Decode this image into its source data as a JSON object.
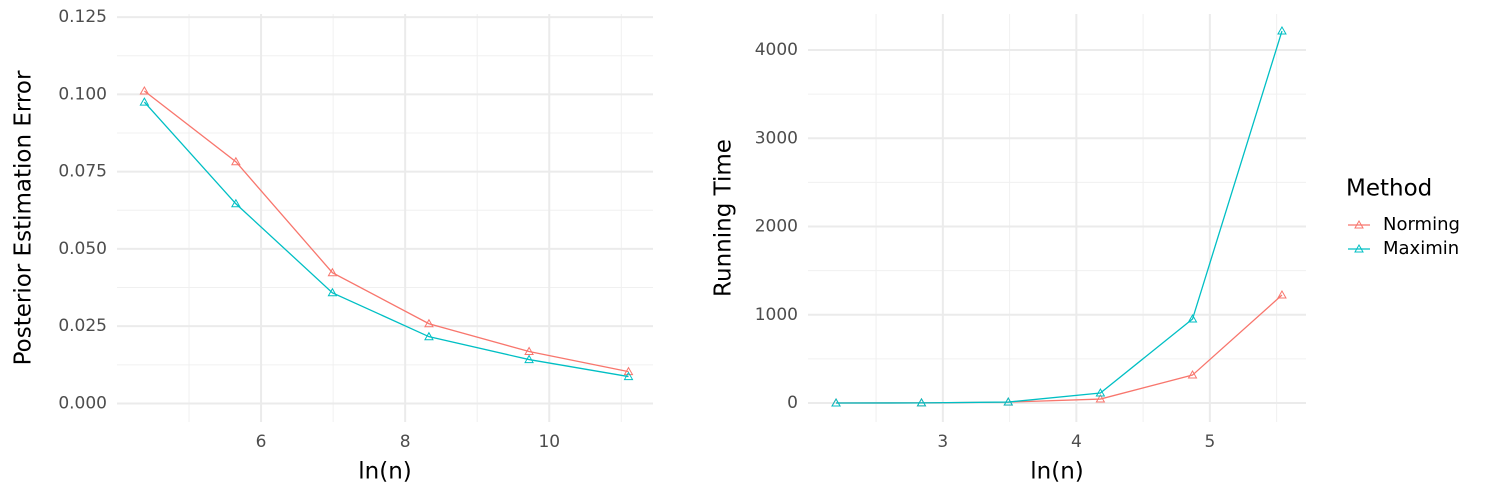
{
  "chart_data": [
    {
      "type": "line",
      "xlabel": "ln(n)",
      "ylabel": "Posterior Estimation Error",
      "x": [
        4.38,
        5.65,
        6.99,
        8.33,
        9.72,
        11.1
      ],
      "series": [
        {
          "name": "Norming",
          "color": "#F8766D",
          "values": [
            0.1011,
            0.0782,
            0.0423,
            0.0258,
            0.0168,
            0.0103
          ]
        },
        {
          "name": "Maximin",
          "color": "#00BFC4",
          "values": [
            0.0975,
            0.0646,
            0.0358,
            0.0216,
            0.0142,
            0.0087
          ]
        }
      ],
      "xlim": [
        4.0,
        11.44
      ],
      "xticks": [
        6,
        8,
        10
      ],
      "xminor": [
        5,
        7,
        9,
        11
      ],
      "ylim": [
        -0.006,
        0.126
      ],
      "yticks": [
        {
          "value": 0,
          "label": "0.000"
        },
        {
          "value": 0.025,
          "label": "0.025"
        },
        {
          "value": 0.05,
          "label": "0.050"
        },
        {
          "value": 0.075,
          "label": "0.075"
        },
        {
          "value": 0.1,
          "label": "0.100"
        },
        {
          "value": 0.125,
          "label": "0.125"
        }
      ],
      "yminor": [
        0.0125,
        0.0375,
        0.0625,
        0.0875,
        0.1125
      ],
      "grid": true
    },
    {
      "type": "line",
      "xlabel": "ln(n)",
      "ylabel": "Running Time",
      "x": [
        2.2,
        2.84,
        3.49,
        4.18,
        4.87,
        5.54
      ],
      "series": [
        {
          "name": "Norming",
          "color": "#F8766D",
          "values": [
            0,
            2,
            10,
            45,
            317,
            1224
          ]
        },
        {
          "name": "Maximin",
          "color": "#00BFC4",
          "values": [
            0,
            2,
            11,
            113,
            952,
            4215
          ]
        }
      ],
      "xlim": [
        1.99,
        5.72
      ],
      "xticks": [
        3,
        4,
        5
      ],
      "xminor": [
        2.5,
        3.5,
        4.5,
        5.5
      ],
      "ylim": [
        -215,
        4408
      ],
      "yticks": [
        0,
        1000,
        2000,
        3000,
        4000
      ],
      "yminor": [
        500,
        1500,
        2500,
        3500
      ],
      "grid": true,
      "legend": {
        "title": "Method",
        "position": "right"
      }
    }
  ]
}
